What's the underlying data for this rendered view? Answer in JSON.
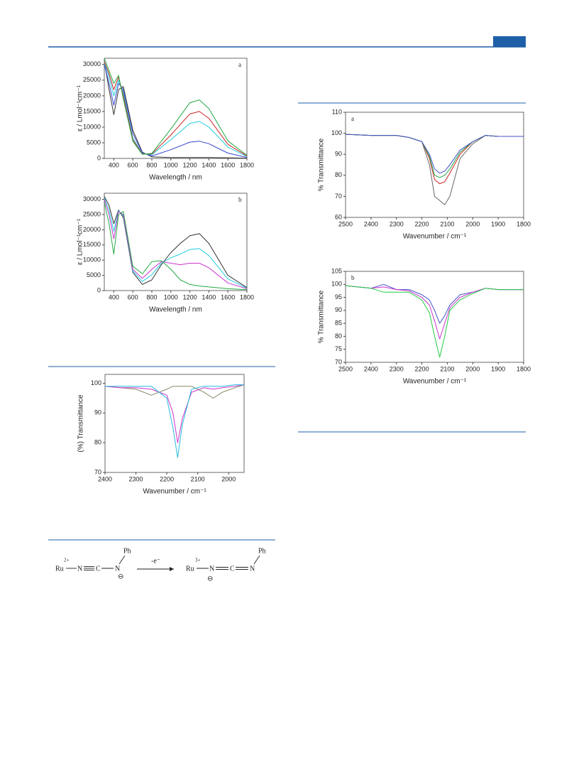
{
  "chart_data": [
    {
      "type": "line",
      "annotation": "a",
      "xlabel": "Wavelength / nm",
      "ylabel": "ε / Lmol⁻¹cm⁻¹",
      "xlim": [
        300,
        1800
      ],
      "ylim": [
        0,
        32000
      ],
      "xticks": [
        400,
        600,
        800,
        1000,
        1200,
        1400,
        1600,
        1800
      ],
      "yticks": [
        0,
        5000,
        10000,
        15000,
        20000,
        25000,
        30000
      ],
      "x": [
        300,
        350,
        400,
        450,
        500,
        600,
        700,
        800,
        1000,
        1200,
        1300,
        1400,
        1600,
        1800
      ],
      "series": [
        {
          "color": "#333333",
          "values": [
            31000,
            22000,
            14000,
            22000,
            23000,
            9000,
            2000,
            500,
            300,
            300,
            300,
            300,
            200,
            100
          ]
        },
        {
          "color": "#3344cc",
          "values": [
            30000,
            24000,
            17000,
            24000,
            22000,
            8000,
            1800,
            800,
            2800,
            5200,
            5500,
            4700,
            1700,
            300
          ]
        },
        {
          "color": "#22ccdd",
          "values": [
            30500,
            26000,
            20000,
            25000,
            21000,
            6500,
            1500,
            1200,
            6000,
            11200,
            11800,
            10000,
            3600,
            600
          ]
        },
        {
          "color": "#cc2222",
          "values": [
            31000,
            27000,
            22000,
            26000,
            20000,
            6000,
            1400,
            1400,
            7500,
            14200,
            15000,
            12800,
            4500,
            800
          ]
        },
        {
          "color": "#22aa44",
          "values": [
            32000,
            28000,
            24000,
            26500,
            19000,
            5500,
            1300,
            1600,
            9400,
            17800,
            18700,
            15900,
            5600,
            1000
          ]
        }
      ]
    },
    {
      "type": "line",
      "annotation": "b",
      "xlabel": "Wavelength / nm",
      "ylabel": "ε / Lmol⁻¹cm⁻¹",
      "xlim": [
        300,
        1800
      ],
      "ylim": [
        0,
        32000
      ],
      "xticks": [
        400,
        600,
        800,
        1000,
        1200,
        1400,
        1600,
        1800
      ],
      "yticks": [
        0,
        5000,
        10000,
        15000,
        20000,
        25000,
        30000
      ],
      "x": [
        300,
        350,
        400,
        450,
        500,
        600,
        700,
        800,
        900,
        1000,
        1100,
        1200,
        1300,
        1400,
        1600,
        1800
      ],
      "series": [
        {
          "color": "#333333",
          "values": [
            31000,
            28000,
            22000,
            26500,
            24000,
            6000,
            2000,
            3500,
            8500,
            12500,
            15500,
            18000,
            18700,
            15500,
            5000,
            1000
          ]
        },
        {
          "color": "#22ccdd",
          "values": [
            30500,
            26500,
            19500,
            26300,
            24500,
            6500,
            3000,
            5200,
            9000,
            10800,
            12000,
            13500,
            13800,
            11500,
            3800,
            800
          ]
        },
        {
          "color": "#cc33cc",
          "values": [
            30000,
            25000,
            17000,
            26000,
            25000,
            7000,
            4000,
            7000,
            9500,
            9000,
            8500,
            9000,
            9000,
            7500,
            2500,
            600
          ]
        },
        {
          "color": "#22aa44",
          "values": [
            29000,
            22000,
            12000,
            25000,
            26000,
            8000,
            5500,
            9500,
            9800,
            7000,
            3500,
            2000,
            1500,
            1200,
            600,
            300
          ]
        }
      ]
    },
    {
      "type": "line",
      "xlabel": "Wavenumber / cm⁻¹",
      "ylabel": "(%) Transmittance",
      "xlim": [
        2400,
        1950
      ],
      "ylim": [
        70,
        103
      ],
      "xticks": [
        2400,
        2300,
        2200,
        2100,
        2000
      ],
      "yticks": [
        70,
        80,
        90,
        100
      ],
      "x": [
        2400,
        2350,
        2300,
        2250,
        2200,
        2180,
        2165,
        2150,
        2120,
        2080,
        2050,
        2020,
        1980,
        1950
      ],
      "series": [
        {
          "color": "#888866",
          "values": [
            99,
            98.5,
            98,
            96,
            98,
            99,
            99,
            99,
            99,
            97,
            95,
            97,
            98.5,
            99.5
          ]
        },
        {
          "color": "#cc33cc",
          "values": [
            99,
            98.5,
            98.5,
            98,
            96,
            90,
            80,
            88,
            97,
            98.5,
            98,
            98.5,
            99,
            99.5
          ]
        },
        {
          "color": "#22bbdd",
          "values": [
            99,
            99,
            99,
            99,
            95,
            85,
            75,
            86,
            98,
            99,
            99,
            99,
            99.5,
            99.5
          ]
        }
      ]
    },
    {
      "type": "line",
      "annotation": "a",
      "xlabel": "Wavenumber / cm⁻¹",
      "ylabel": "% Transmittance",
      "xlim": [
        2500,
        1800
      ],
      "ylim": [
        60,
        110
      ],
      "xticks": [
        2500,
        2400,
        2300,
        2200,
        2100,
        2000,
        1900,
        1800
      ],
      "yticks": [
        60,
        70,
        80,
        90,
        100,
        110
      ],
      "x": [
        2500,
        2400,
        2300,
        2250,
        2200,
        2170,
        2150,
        2130,
        2110,
        2090,
        2050,
        2000,
        1950,
        1900,
        1800
      ],
      "series": [
        {
          "color": "#666666",
          "values": [
            99.5,
            99,
            99,
            98,
            96,
            85,
            70,
            68,
            66,
            70,
            88,
            95,
            99,
            98.5,
            98.5
          ]
        },
        {
          "color": "#cc2222",
          "values": [
            99.5,
            99,
            99,
            98,
            96,
            88,
            78,
            76,
            77,
            81,
            90,
            96,
            99,
            98.5,
            98.5
          ]
        },
        {
          "color": "#22aa44",
          "values": [
            99.5,
            99,
            99,
            98,
            96,
            89,
            80,
            79,
            80,
            83,
            91,
            96,
            99,
            98.5,
            98.5
          ]
        },
        {
          "color": "#4455cc",
          "values": [
            99.5,
            99,
            99,
            98,
            96,
            90,
            83,
            81,
            82,
            85,
            92,
            96,
            99,
            98.5,
            98.5
          ]
        }
      ]
    },
    {
      "type": "line",
      "annotation": "b",
      "xlabel": "Wavenumber / cm⁻¹",
      "ylabel": "% Transmittance",
      "xlim": [
        2500,
        1800
      ],
      "ylim": [
        70,
        105
      ],
      "xticks": [
        2500,
        2400,
        2300,
        2200,
        2100,
        2000,
        1900,
        1800
      ],
      "yticks": [
        70,
        75,
        80,
        85,
        90,
        95,
        100,
        105
      ],
      "x": [
        2500,
        2400,
        2350,
        2300,
        2250,
        2200,
        2170,
        2150,
        2130,
        2110,
        2090,
        2050,
        2000,
        1950,
        1900,
        1800
      ],
      "series": [
        {
          "color": "#4455cc",
          "values": [
            99.5,
            98.5,
            100,
            98,
            98,
            96,
            94,
            90,
            85,
            88,
            92,
            96,
            97,
            98.5,
            98,
            98
          ]
        },
        {
          "color": "#cc33cc",
          "values": [
            99.5,
            98.5,
            99,
            98,
            97.5,
            95,
            92,
            86,
            79,
            85,
            91,
            95,
            97,
            98.5,
            98,
            98
          ]
        },
        {
          "color": "#22cc44",
          "values": [
            99.5,
            98.5,
            97,
            97,
            97,
            94,
            89,
            80,
            72,
            80,
            90,
            94,
            96.5,
            98.5,
            98,
            98
          ]
        }
      ]
    }
  ],
  "scheme": {
    "items": [
      "Ru",
      "2+",
      "N",
      "C",
      "N",
      "Ph",
      "⊖",
      "-e⁻",
      "Ru",
      "3+",
      "N",
      "C",
      "N",
      "Ph",
      "⊖"
    ]
  }
}
